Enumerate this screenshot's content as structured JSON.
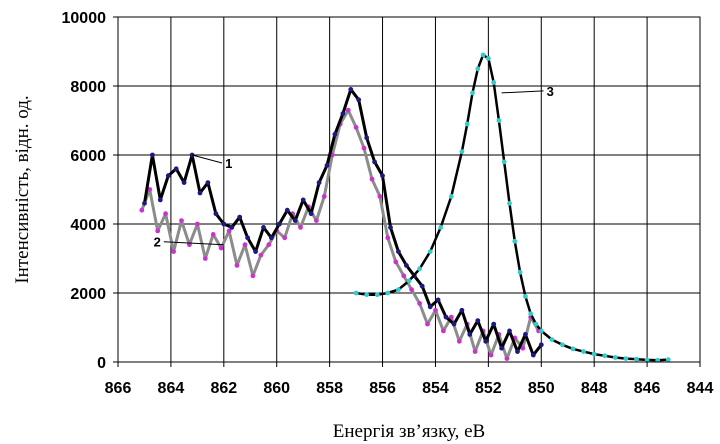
{
  "chart_data": {
    "type": "line",
    "xlabel": "Енергія зв’язку, еВ",
    "ylabel": "Інтенсивність, відн. од.",
    "xlim": [
      866,
      844
    ],
    "ylim": [
      0,
      10000
    ],
    "x_ticks": [
      "866",
      "864",
      "862",
      "860",
      "858",
      "856",
      "854",
      "852",
      "850",
      "848",
      "846",
      "844"
    ],
    "y_ticks": [
      "0",
      "2000",
      "4000",
      "6000",
      "8000",
      "10000"
    ],
    "grid": true,
    "series": [
      {
        "name": "1",
        "color": "#000000",
        "marker_color": "#1a1a80",
        "x": [
          865.0,
          864.7,
          864.4,
          864.1,
          863.8,
          863.5,
          863.2,
          862.9,
          862.6,
          862.3,
          862.0,
          861.7,
          861.4,
          861.1,
          860.8,
          860.5,
          860.2,
          859.9,
          859.6,
          859.3,
          859.0,
          858.7,
          858.4,
          858.1,
          857.8,
          857.5,
          857.2,
          856.9,
          856.6,
          856.3,
          856.0,
          855.7,
          855.4,
          855.1,
          854.8,
          854.5,
          854.2,
          853.9,
          853.6,
          853.3,
          853.0,
          852.7,
          852.4,
          852.1,
          851.8,
          851.5,
          851.2,
          850.9,
          850.6,
          850.3,
          850.0
        ],
        "y": [
          4600,
          6000,
          4700,
          5400,
          5600,
          5200,
          6000,
          4900,
          5200,
          4300,
          4000,
          3900,
          4200,
          3600,
          3200,
          3900,
          3600,
          4000,
          4400,
          4100,
          4700,
          4300,
          5200,
          5700,
          6600,
          7200,
          7900,
          7600,
          6500,
          5800,
          5400,
          3900,
          3200,
          2800,
          2500,
          2200,
          1600,
          1800,
          1300,
          1100,
          1500,
          800,
          1200,
          600,
          1100,
          400,
          900,
          300,
          800,
          200,
          500
        ]
      },
      {
        "name": "2",
        "color": "#8c8c8c",
        "marker_color": "#cc33cc",
        "x": [
          865.1,
          864.8,
          864.5,
          864.2,
          863.9,
          863.6,
          863.3,
          863.0,
          862.7,
          862.4,
          862.1,
          861.8,
          861.5,
          861.2,
          860.9,
          860.6,
          860.3,
          860.0,
          859.7,
          859.4,
          859.1,
          858.8,
          858.5,
          858.2,
          857.9,
          857.6,
          857.3,
          857.0,
          856.7,
          856.4,
          856.1,
          855.8,
          855.5,
          855.2,
          854.9,
          854.6,
          854.3,
          854.0,
          853.7,
          853.4,
          853.1,
          852.8,
          852.5,
          852.2,
          851.9,
          851.6,
          851.3,
          851.0,
          850.7,
          850.4,
          850.1
        ],
        "y": [
          4400,
          5000,
          3800,
          4300,
          3200,
          4100,
          3400,
          4000,
          3000,
          3700,
          3300,
          3800,
          2800,
          3400,
          2500,
          3100,
          3400,
          3800,
          3600,
          4300,
          3900,
          4500,
          4100,
          4800,
          6000,
          6900,
          7300,
          6800,
          6200,
          5300,
          4800,
          3600,
          2900,
          2500,
          2100,
          1700,
          1100,
          1500,
          900,
          1300,
          600,
          1100,
          300,
          900,
          200,
          800,
          100,
          700,
          400,
          1300,
          900
        ]
      },
      {
        "name": "3",
        "color": "#000000",
        "marker_color": "#33cccc",
        "x": [
          857.0,
          856.6,
          856.2,
          855.8,
          855.4,
          855.0,
          854.6,
          854.2,
          853.8,
          853.4,
          853.0,
          852.8,
          852.6,
          852.4,
          852.2,
          852.0,
          851.8,
          851.6,
          851.4,
          851.2,
          851.0,
          850.8,
          850.6,
          850.4,
          850.2,
          850.0,
          849.6,
          849.2,
          848.8,
          848.4,
          848.0,
          847.6,
          847.2,
          846.8,
          846.4,
          846.0,
          845.6,
          845.2
        ],
        "y": [
          2000,
          1950,
          1950,
          2000,
          2100,
          2350,
          2700,
          3200,
          3900,
          4800,
          6100,
          6900,
          7800,
          8500,
          8900,
          8800,
          8100,
          7000,
          5800,
          4600,
          3500,
          2600,
          1900,
          1400,
          1100,
          900,
          650,
          500,
          380,
          300,
          230,
          180,
          130,
          100,
          80,
          60,
          50,
          70
        ]
      }
    ]
  }
}
